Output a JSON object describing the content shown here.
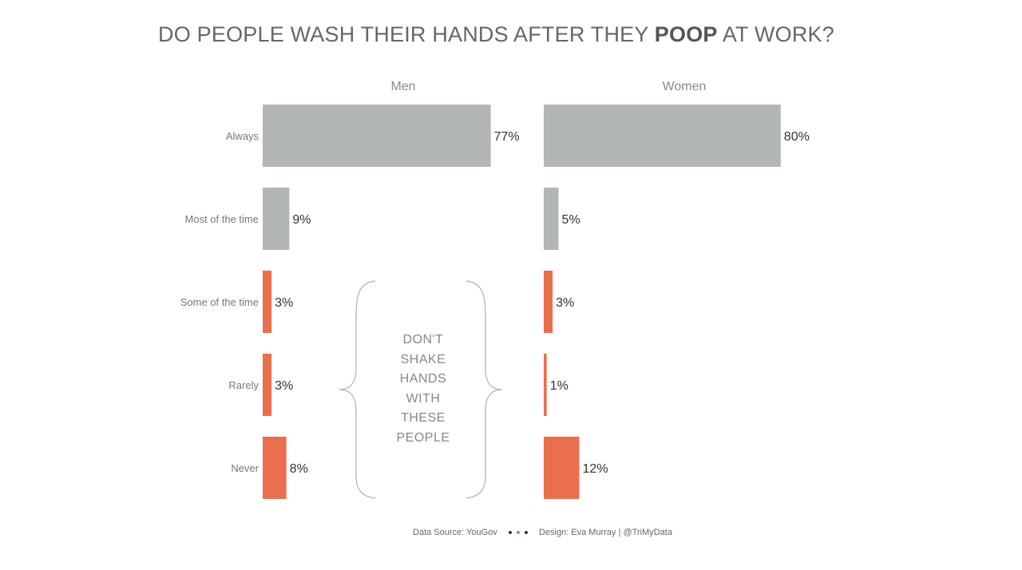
{
  "title": {
    "before": "DO PEOPLE WASH THEIR HANDS AFTER THEY ",
    "bold": "POOP",
    "after": " AT WORK?"
  },
  "annotation": [
    "DON'T",
    "SHAKE",
    "HANDS",
    "WITH",
    "THESE",
    "PEOPLE"
  ],
  "footer": {
    "source": "Data Source: YouGov",
    "design": "Design: Eva Murray | @TriMyData",
    "dot_colors": [
      "#1f3a4d",
      "#ec6f4d",
      "#1f3a4d"
    ]
  },
  "colors": {
    "grey": "#b3b6b7",
    "orange": "#ec6f4d",
    "label": "#333333",
    "category": "#777777"
  },
  "chart_data": {
    "type": "bar",
    "orientation": "horizontal",
    "categories": [
      "Always",
      "Most of the time",
      "Some of the time",
      "Rarely",
      "Never"
    ],
    "category_colors": [
      "grey",
      "grey",
      "orange",
      "orange",
      "orange"
    ],
    "series": [
      {
        "name": "Men",
        "values": [
          77,
          9,
          3,
          3,
          8
        ],
        "labels": [
          "77%",
          "9%",
          "3%",
          "3%",
          "8%"
        ]
      },
      {
        "name": "Women",
        "values": [
          80,
          5,
          3,
          1,
          12
        ],
        "labels": [
          "80%",
          "5%",
          "3%",
          "1%",
          "12%"
        ]
      }
    ],
    "xlim": [
      0,
      100
    ],
    "grid": false,
    "legend": "none"
  }
}
